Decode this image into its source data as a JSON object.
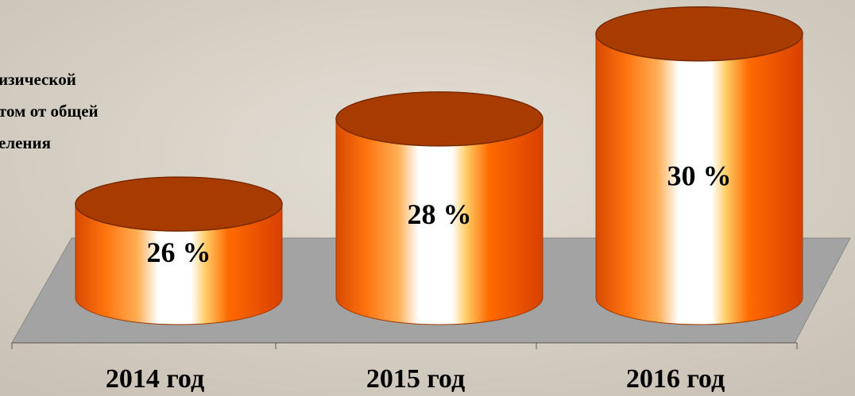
{
  "chart_data": {
    "type": "cylinder",
    "title_lines": [
      "изической",
      "том от общей",
      "еления"
    ],
    "categories": [
      "2014 год",
      "2015 год",
      "2016 год"
    ],
    "values": [
      26,
      28,
      30
    ],
    "value_labels": [
      "26 %",
      "28 %",
      "30 %"
    ],
    "color": "#ff6a00",
    "ylim": [
      23.8,
      30.2
    ]
  }
}
